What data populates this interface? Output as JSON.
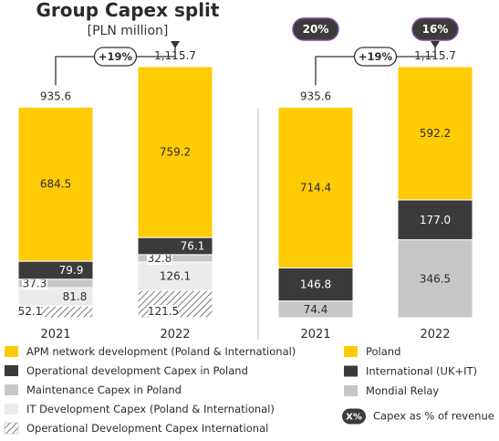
{
  "title": "Group Capex split",
  "subtitle": "[PLN million]",
  "colors": {
    "yellow": "#FFCB05",
    "dark": "#3b3b3b",
    "grey": "#c7c7c7",
    "light": "#ebebeb",
    "hatch": "#ffffff",
    "pill": "#3b3b3b"
  },
  "chart_data": [
    {
      "type": "bar",
      "stacked": true,
      "categories": [
        "2021",
        "2022"
      ],
      "totals": [
        "935.6",
        "1,115.7"
      ],
      "growth": "+19%",
      "series": [
        {
          "name": "Operational Development Capex International",
          "values": [
            52.1,
            121.5
          ],
          "labels": [
            "52.1",
            "121.5"
          ],
          "color": "hatch"
        },
        {
          "name": "IT Development Capex (Poland & International)",
          "values": [
            81.8,
            126.1
          ],
          "labels": [
            "81.8",
            "126.1"
          ],
          "color": "light"
        },
        {
          "name": "Maintenance Capex in Poland",
          "values": [
            37.3,
            32.8
          ],
          "labels": [
            "37.3",
            "32.8"
          ],
          "color": "grey"
        },
        {
          "name": "Operational development Capex in Poland",
          "values": [
            79.9,
            76.1
          ],
          "labels": [
            "79.9",
            "76.1"
          ],
          "color": "dark"
        },
        {
          "name": "APM network development (Poland & International)",
          "values": [
            684.5,
            759.2
          ],
          "labels": [
            "684.5",
            "759.2"
          ],
          "color": "yellow"
        }
      ]
    },
    {
      "type": "bar",
      "stacked": true,
      "categories": [
        "2021",
        "2022"
      ],
      "totals": [
        "935.6",
        "1,115.7"
      ],
      "growth": "+19%",
      "capex_pct_of_revenue": [
        "20%",
        "16%"
      ],
      "series": [
        {
          "name": "Mondial Relay",
          "values": [
            74.4,
            346.5
          ],
          "labels": [
            "74.4",
            "346.5"
          ],
          "color": "grey"
        },
        {
          "name": "International (UK+IT)",
          "values": [
            146.8,
            177.0
          ],
          "labels": [
            "146.8",
            "177.0"
          ],
          "color": "dark"
        },
        {
          "name": "Poland",
          "values": [
            714.4,
            592.2
          ],
          "labels": [
            "714.4",
            "592.2"
          ],
          "color": "yellow"
        }
      ]
    }
  ],
  "legend_left": [
    {
      "label": "APM network development (Poland & International)",
      "color": "yellow"
    },
    {
      "label": "Operational development Capex in Poland",
      "color": "dark"
    },
    {
      "label": "Maintenance Capex in Poland",
      "color": "grey"
    },
    {
      "label": "IT Development Capex (Poland & International)",
      "color": "light"
    },
    {
      "label": "Operational Development Capex International",
      "color": "hatch"
    }
  ],
  "legend_right": [
    {
      "label": "Poland",
      "color": "yellow"
    },
    {
      "label": "International (UK+IT)",
      "color": "dark"
    },
    {
      "label": "Mondial Relay",
      "color": "grey"
    },
    {
      "label": "Capex as % of revenue",
      "badge": "X%"
    }
  ]
}
